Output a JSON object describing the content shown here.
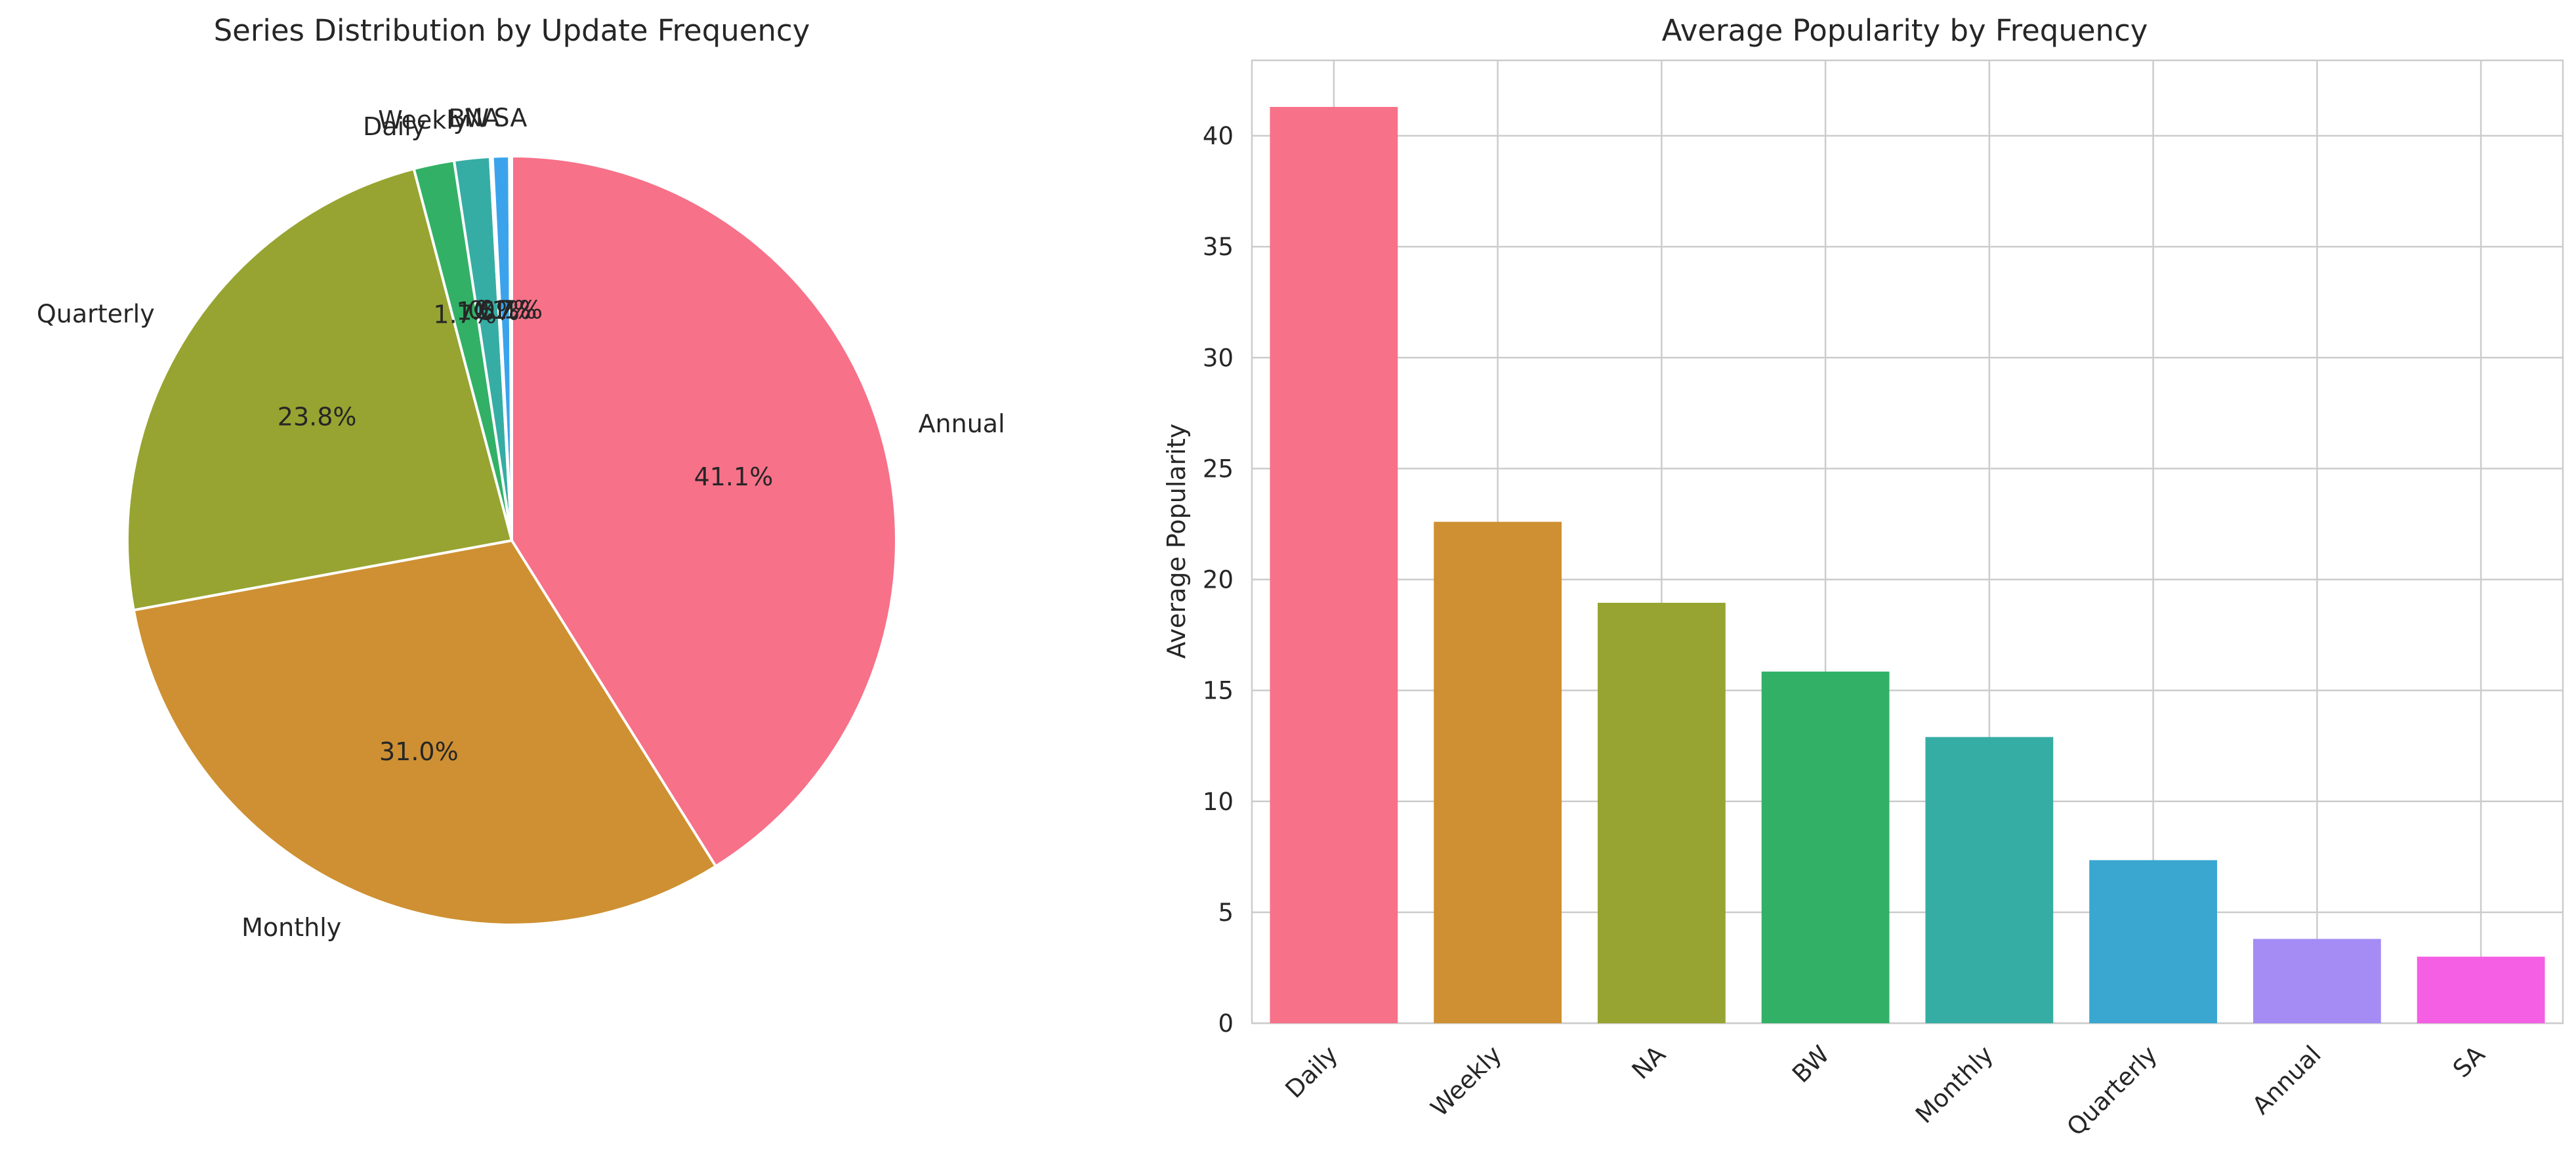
{
  "chart_data": [
    {
      "type": "pie",
      "title": "Series Distribution by Update Frequency",
      "start_angle": 90,
      "direction": "clockwise",
      "slices": [
        {
          "label": "Annual",
          "percent": 41.1,
          "pct_label": "41.1%",
          "color": "#f77189"
        },
        {
          "label": "Monthly",
          "percent": 31.0,
          "pct_label": "31.0%",
          "color": "#ce9032"
        },
        {
          "label": "Quarterly",
          "percent": 23.8,
          "pct_label": "23.8%",
          "color": "#97a431"
        },
        {
          "label": "Daily",
          "percent": 1.7,
          "pct_label": "1.7%",
          "color": "#32b166"
        },
        {
          "label": "Weekly",
          "percent": 1.5,
          "pct_label": "1.5%",
          "color": "#36ada4"
        },
        {
          "label": "BW",
          "percent": 0.1,
          "pct_label": "0.1%",
          "color": "#39a7d0"
        },
        {
          "label": "NA",
          "percent": 0.7,
          "pct_label": "0.7%",
          "color": "#3ba3ec"
        },
        {
          "label": "SA",
          "percent": 0.1,
          "pct_label": "0.1%",
          "color": "#c0c0c0"
        }
      ]
    },
    {
      "type": "bar",
      "title": "Average Popularity by Frequency",
      "xlabel": "",
      "ylabel": "Average Popularity",
      "ylim": [
        0,
        43.4
      ],
      "yticks": [
        0,
        5,
        10,
        15,
        20,
        25,
        30,
        35,
        40
      ],
      "grid": true,
      "categories": [
        "Daily",
        "Weekly",
        "NA",
        "BW",
        "Monthly",
        "Quarterly",
        "Annual",
        "SA"
      ],
      "values": [
        41.3,
        22.6,
        18.95,
        15.85,
        12.9,
        7.35,
        3.8,
        3.0
      ],
      "colors": [
        "#f77189",
        "#ce9032",
        "#97a431",
        "#32b166",
        "#36ada4",
        "#39a7d0",
        "#a48cf4",
        "#f45fe3"
      ]
    }
  ]
}
